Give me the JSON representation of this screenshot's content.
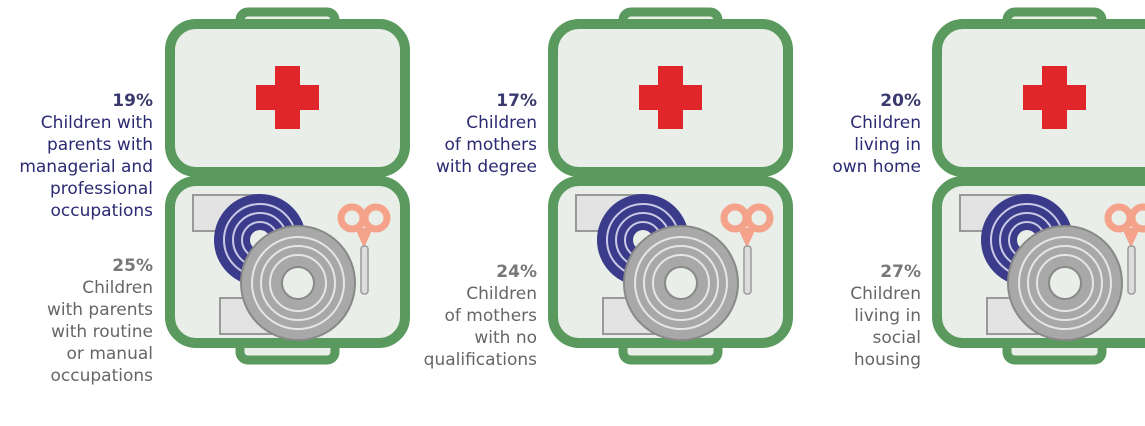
{
  "panels": [
    {
      "top": {
        "value": "19%",
        "lines": [
          "Children with",
          "parents with",
          "managerial and",
          "professional",
          "occupations"
        ]
      },
      "bottom": {
        "value": "25%",
        "lines": [
          "Children",
          "with parents",
          "with routine",
          "or manual",
          "occupations"
        ]
      }
    },
    {
      "top": {
        "value": "17%",
        "lines": [
          "Children",
          "of mothers",
          "with degree"
        ]
      },
      "bottom": {
        "value": "24%",
        "lines": [
          "Children",
          "of mothers",
          "with no",
          "qualifications"
        ]
      }
    },
    {
      "top": {
        "value": "20%",
        "lines": [
          "Children",
          "living in",
          "own home"
        ]
      },
      "bottom": {
        "value": "27%",
        "lines": [
          "Children",
          "living in",
          "social",
          "housing"
        ]
      }
    }
  ]
}
